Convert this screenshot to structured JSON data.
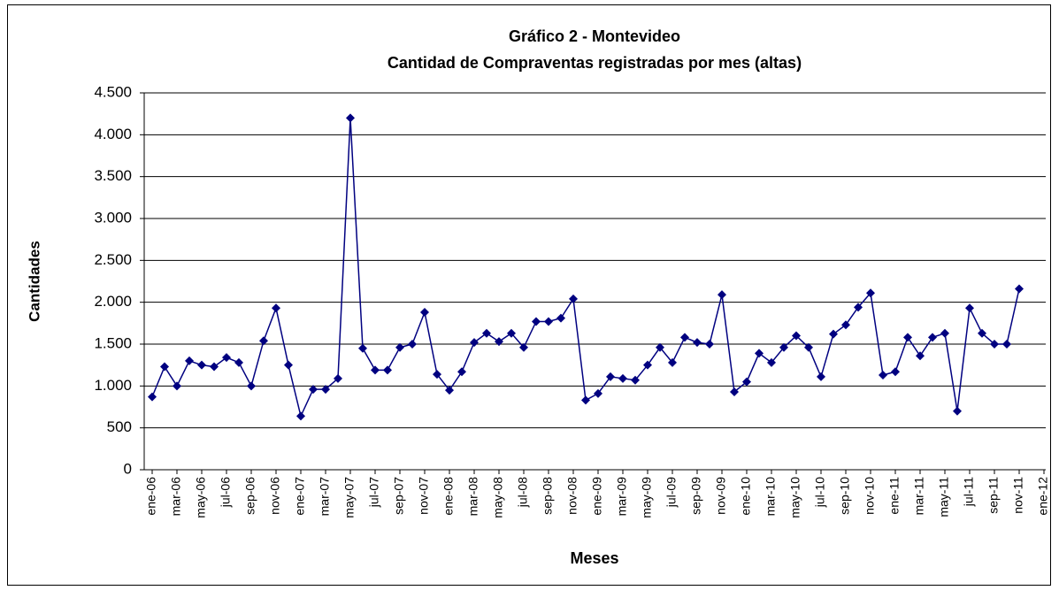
{
  "chart_data": {
    "type": "line",
    "title": "Gráfico 2 - Montevideo",
    "subtitle": "Cantidad de Compraventas registradas por mes (altas)",
    "x_label": "Meses",
    "y_label": "Cantidades",
    "categories": [
      "ene-06",
      null,
      "mar-06",
      null,
      "may-06",
      null,
      "jul-06",
      null,
      "sep-06",
      null,
      "nov-06",
      null,
      "ene-07",
      null,
      "mar-07",
      null,
      "may-07",
      null,
      "jul-07",
      null,
      "sep-07",
      null,
      "nov-07",
      null,
      "ene-08",
      null,
      "mar-08",
      null,
      "may-08",
      null,
      "jul-08",
      null,
      "sep-08",
      null,
      "nov-08",
      null,
      "ene-09",
      null,
      "mar-09",
      null,
      "may-09",
      null,
      "jul-09",
      null,
      "sep-09",
      null,
      "nov-09",
      null,
      "ene-10",
      null,
      "mar-10",
      null,
      "may-10",
      null,
      "jul-10",
      null,
      "sep-10",
      null,
      "nov-10",
      null,
      "ene-11",
      null,
      "mar-11",
      null,
      "may-11",
      null,
      "jul-11",
      null,
      "sep-11",
      null,
      "nov-11",
      null,
      "ene-12"
    ],
    "values": [
      870,
      1230,
      1000,
      1300,
      1250,
      1230,
      1340,
      1280,
      1000,
      1540,
      1930,
      1250,
      640,
      960,
      960,
      1090,
      4200,
      1450,
      1190,
      1190,
      1460,
      1500,
      1880,
      1140,
      950,
      1170,
      1520,
      1630,
      1530,
      1630,
      1460,
      1770,
      1770,
      1810,
      2040,
      830,
      910,
      1110,
      1090,
      1070,
      1250,
      1460,
      1280,
      1580,
      1520,
      1500,
      2090,
      930,
      1050,
      1390,
      1280,
      1460,
      1600,
      1460,
      1110,
      1620,
      1730,
      1940,
      2110,
      1130,
      1170,
      1580,
      1360,
      1580,
      1630,
      700,
      1930,
      1630,
      1500,
      1500,
      2160,
      null,
      null
    ],
    "color": "#000080",
    "ylim": [
      0,
      4500
    ],
    "yticks": [
      0,
      500,
      {
        "value": 1000,
        "label": "1.000"
      },
      {
        "value": 1500,
        "label": "1.500"
      },
      {
        "value": 2000,
        "label": "2.000"
      },
      {
        "value": 2500,
        "label": "2.500"
      },
      {
        "value": 3000,
        "label": "3.000"
      },
      {
        "value": 3500,
        "label": "3.500"
      },
      {
        "value": 4000,
        "label": "4.000"
      },
      {
        "value": 4500,
        "label": "4.500"
      }
    ],
    "grid": true
  }
}
